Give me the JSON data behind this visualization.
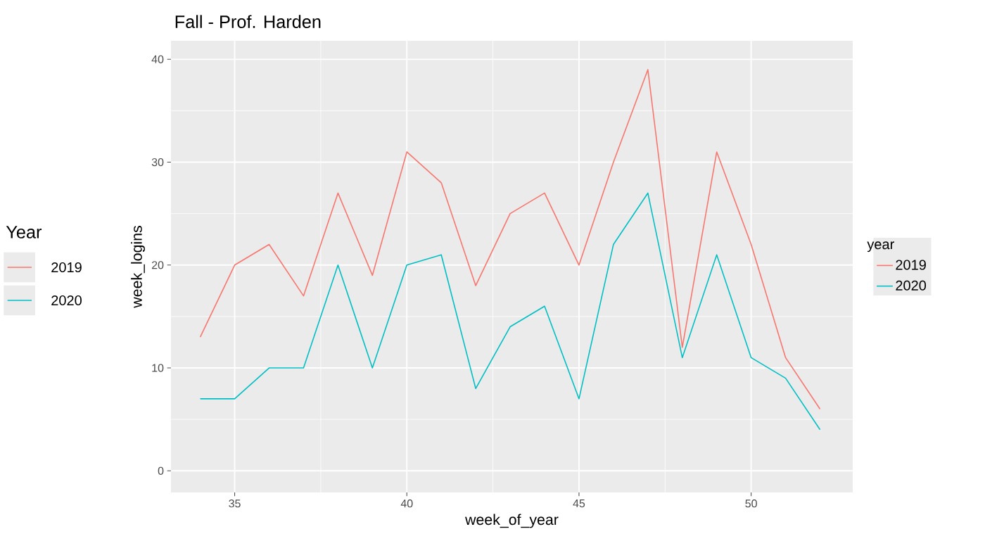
{
  "chart_data": {
    "type": "line",
    "title": "Fall - Prof. Harden",
    "xlabel": "week_of_year",
    "ylabel": "week_logins",
    "legend_title": "year",
    "x": [
      34,
      35,
      36,
      37,
      38,
      39,
      40,
      41,
      42,
      43,
      44,
      45,
      46,
      47,
      48,
      49,
      50,
      51,
      52
    ],
    "series": [
      {
        "name": "2019",
        "color": "#f8766d",
        "values": [
          13,
          20,
          22,
          17,
          27,
          19,
          31,
          28,
          18,
          25,
          27,
          20,
          30,
          39,
          12,
          31,
          22,
          11,
          6
        ]
      },
      {
        "name": "2020",
        "color": "#00bfc4",
        "values": [
          7,
          7,
          10,
          10,
          20,
          10,
          20,
          21,
          8,
          14,
          16,
          7,
          22,
          27,
          11,
          21,
          11,
          9,
          4
        ]
      }
    ],
    "xlim": [
      33.15,
      52.95
    ],
    "ylim": [
      -2.1,
      41.8
    ],
    "xticks": [
      35,
      40,
      45,
      50
    ],
    "yticks": [
      0,
      10,
      20,
      30,
      40
    ],
    "grid": true,
    "legend": "right",
    "annotations": [
      "Year",
      "2019",
      "2020"
    ]
  }
}
